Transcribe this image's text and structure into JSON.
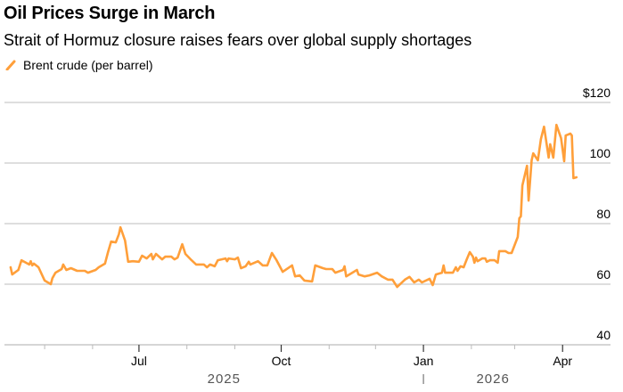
{
  "chart_data": {
    "type": "line",
    "title": "Oil Prices Surge in March",
    "subtitle": "Strait of Hormuz closure raises fears over global supply shortages",
    "xlabel": "",
    "ylabel": "",
    "ylim": [
      40,
      120
    ],
    "xlim": [
      "2025-04-05",
      "2026-05-02"
    ],
    "grid": true,
    "legend_position": "top-left",
    "y_ticks": [
      {
        "value": 120,
        "label": "$120"
      },
      {
        "value": 100,
        "label": "100"
      },
      {
        "value": 80,
        "label": "80"
      },
      {
        "value": 60,
        "label": "60"
      },
      {
        "value": 40,
        "label": "40"
      }
    ],
    "x_ticks": [
      {
        "date": "2025-07-01",
        "label": "Jul"
      },
      {
        "date": "2025-10-01",
        "label": "Oct"
      },
      {
        "date": "2026-01-01",
        "label": "Jan"
      },
      {
        "date": "2026-04-01",
        "label": "Apr"
      }
    ],
    "x_minor_ticks": [
      "2025-05-01",
      "2025-06-01",
      "2025-08-01",
      "2025-09-01",
      "2025-11-01",
      "2025-12-01",
      "2026-02-01",
      "2026-03-01"
    ],
    "year_labels": [
      {
        "label": "2025",
        "center": "2025-08-25"
      },
      {
        "label": "2026",
        "center": "2026-02-15"
      }
    ],
    "year_divider": "2026-01-01",
    "series": [
      {
        "name": "Brent crude (per barrel)",
        "color": "#ff9f3a",
        "points": [
          [
            "2025-04-09",
            65.6
          ],
          [
            "2025-04-10",
            63.2
          ],
          [
            "2025-04-14",
            64.7
          ],
          [
            "2025-04-16",
            67.9
          ],
          [
            "2025-04-21",
            66.5
          ],
          [
            "2025-04-22",
            67.6
          ],
          [
            "2025-04-23",
            66.2
          ],
          [
            "2025-04-24",
            66.8
          ],
          [
            "2025-04-27",
            65.6
          ],
          [
            "2025-05-01",
            61.2
          ],
          [
            "2025-05-05",
            60.0
          ],
          [
            "2025-05-06",
            62.0
          ],
          [
            "2025-05-08",
            63.8
          ],
          [
            "2025-05-12",
            65.0
          ],
          [
            "2025-05-13",
            66.5
          ],
          [
            "2025-05-15",
            64.7
          ],
          [
            "2025-05-18",
            65.3
          ],
          [
            "2025-05-22",
            64.4
          ],
          [
            "2025-05-27",
            64.4
          ],
          [
            "2025-05-29",
            63.8
          ],
          [
            "2025-06-03",
            64.7
          ],
          [
            "2025-06-05",
            65.6
          ],
          [
            "2025-06-09",
            66.8
          ],
          [
            "2025-06-11",
            70.6
          ],
          [
            "2025-06-13",
            74.1
          ],
          [
            "2025-06-16",
            73.8
          ],
          [
            "2025-06-18",
            76.5
          ],
          [
            "2025-06-19",
            78.8
          ],
          [
            "2025-06-22",
            74.4
          ],
          [
            "2025-06-24",
            67.4
          ],
          [
            "2025-06-27",
            67.6
          ],
          [
            "2025-07-01",
            67.4
          ],
          [
            "2025-07-03",
            69.4
          ],
          [
            "2025-07-06",
            68.5
          ],
          [
            "2025-07-09",
            70.0
          ],
          [
            "2025-07-10",
            68.2
          ],
          [
            "2025-07-12",
            70.0
          ],
          [
            "2025-07-16",
            68.2
          ],
          [
            "2025-07-18",
            69.1
          ],
          [
            "2025-07-22",
            69.1
          ],
          [
            "2025-07-24",
            68.2
          ],
          [
            "2025-07-26",
            68.8
          ],
          [
            "2025-07-29",
            73.2
          ],
          [
            "2025-07-31",
            70.0
          ],
          [
            "2025-08-04",
            67.9
          ],
          [
            "2025-08-07",
            66.5
          ],
          [
            "2025-08-12",
            66.5
          ],
          [
            "2025-08-14",
            65.6
          ],
          [
            "2025-08-16",
            66.5
          ],
          [
            "2025-08-19",
            65.9
          ],
          [
            "2025-08-21",
            67.9
          ],
          [
            "2025-08-26",
            68.5
          ],
          [
            "2025-08-27",
            67.6
          ],
          [
            "2025-08-28",
            68.5
          ],
          [
            "2025-09-01",
            68.2
          ],
          [
            "2025-09-03",
            68.8
          ],
          [
            "2025-09-05",
            65.3
          ],
          [
            "2025-09-08",
            65.9
          ],
          [
            "2025-09-10",
            67.4
          ],
          [
            "2025-09-11",
            66.5
          ],
          [
            "2025-09-16",
            67.6
          ],
          [
            "2025-09-19",
            66.2
          ],
          [
            "2025-09-22",
            66.2
          ],
          [
            "2025-09-25",
            70.3
          ],
          [
            "2025-09-28",
            67.9
          ],
          [
            "2025-10-02",
            64.1
          ],
          [
            "2025-10-08",
            66.2
          ],
          [
            "2025-10-10",
            62.6
          ],
          [
            "2025-10-13",
            62.9
          ],
          [
            "2025-10-16",
            61.2
          ],
          [
            "2025-10-21",
            60.9
          ],
          [
            "2025-10-23",
            66.2
          ],
          [
            "2025-10-28",
            65.3
          ],
          [
            "2025-10-30",
            65.0
          ],
          [
            "2025-11-03",
            65.0
          ],
          [
            "2025-11-05",
            63.8
          ],
          [
            "2025-11-10",
            64.7
          ],
          [
            "2025-11-11",
            65.9
          ],
          [
            "2025-11-12",
            62.6
          ],
          [
            "2025-11-16",
            63.8
          ],
          [
            "2025-11-19",
            64.7
          ],
          [
            "2025-11-20",
            63.2
          ],
          [
            "2025-11-24",
            62.6
          ],
          [
            "2025-11-27",
            62.9
          ],
          [
            "2025-12-02",
            63.8
          ],
          [
            "2025-12-05",
            62.6
          ],
          [
            "2025-12-09",
            61.5
          ],
          [
            "2025-12-12",
            61.5
          ],
          [
            "2025-12-15",
            59.1
          ],
          [
            "2025-12-20",
            61.5
          ],
          [
            "2025-12-23",
            62.4
          ],
          [
            "2025-12-26",
            60.6
          ],
          [
            "2025-12-29",
            61.5
          ],
          [
            "2025-12-31",
            60.6
          ],
          [
            "2026-01-05",
            61.8
          ],
          [
            "2026-01-07",
            59.7
          ],
          [
            "2026-01-09",
            63.2
          ],
          [
            "2026-01-13",
            63.8
          ],
          [
            "2026-01-14",
            66.2
          ],
          [
            "2026-01-15",
            63.8
          ],
          [
            "2026-01-20",
            63.8
          ],
          [
            "2026-01-22",
            65.6
          ],
          [
            "2026-01-23",
            64.4
          ],
          [
            "2026-01-25",
            65.9
          ],
          [
            "2026-01-27",
            65.6
          ],
          [
            "2026-01-29",
            68.2
          ],
          [
            "2026-01-31",
            70.6
          ],
          [
            "2026-02-02",
            69.1
          ],
          [
            "2026-02-03",
            67.1
          ],
          [
            "2026-02-04",
            68.8
          ],
          [
            "2026-02-05",
            67.6
          ],
          [
            "2026-02-08",
            68.5
          ],
          [
            "2026-02-10",
            68.5
          ],
          [
            "2026-02-11",
            67.4
          ],
          [
            "2026-02-13",
            67.9
          ],
          [
            "2026-02-16",
            67.9
          ],
          [
            "2026-02-18",
            67.1
          ],
          [
            "2026-02-19",
            70.9
          ],
          [
            "2026-02-23",
            70.9
          ],
          [
            "2026-02-25",
            70.3
          ],
          [
            "2026-02-27",
            70.3
          ],
          [
            "2026-03-03",
            75.6
          ],
          [
            "2026-03-04",
            81.8
          ],
          [
            "2026-03-05",
            82.4
          ],
          [
            "2026-03-06",
            92.6
          ],
          [
            "2026-03-09",
            99.1
          ],
          [
            "2026-03-10",
            87.6
          ],
          [
            "2026-03-12",
            100.9
          ],
          [
            "2026-03-13",
            103.2
          ],
          [
            "2026-03-16",
            100.9
          ],
          [
            "2026-03-18",
            107.9
          ],
          [
            "2026-03-20",
            112.0
          ],
          [
            "2026-03-23",
            101.8
          ],
          [
            "2026-03-24",
            106.2
          ],
          [
            "2026-03-26",
            101.8
          ],
          [
            "2026-03-28",
            112.6
          ],
          [
            "2026-03-31",
            108.2
          ],
          [
            "2026-04-02",
            100.6
          ],
          [
            "2026-04-03",
            109.1
          ],
          [
            "2026-04-06",
            109.7
          ],
          [
            "2026-04-07",
            109.1
          ],
          [
            "2026-04-08",
            95.0
          ],
          [
            "2026-04-10",
            95.3
          ]
        ]
      }
    ]
  }
}
